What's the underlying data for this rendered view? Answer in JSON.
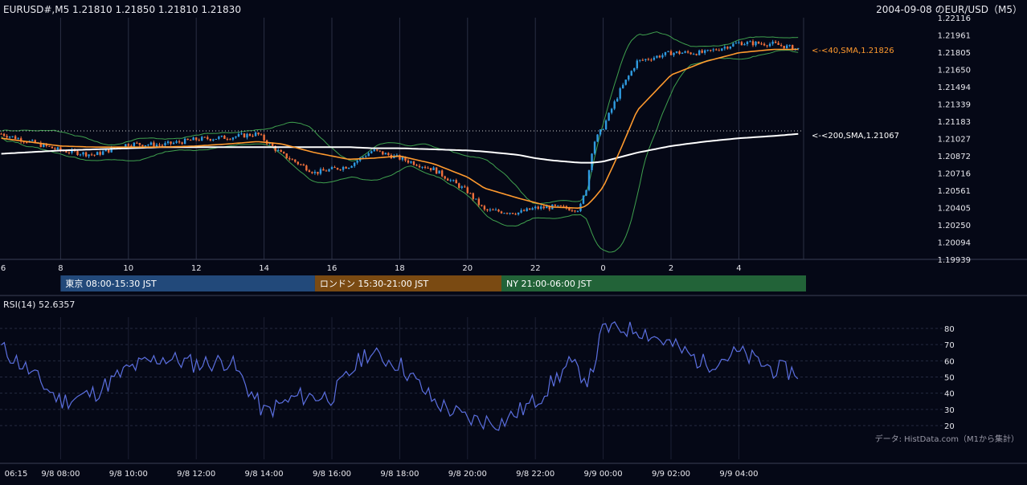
{
  "header": {
    "symbol_quote": "EURUSD#,M5 1.21810 1.21850 1.21810 1.21830",
    "title": "2004-09-08 のEUR/USD（M5）"
  },
  "price_axis_labels": [
    "1.22116",
    "1.21961",
    "1.21805",
    "1.21650",
    "1.21494",
    "1.21339",
    "1.21183",
    "1.21027",
    "1.20872",
    "1.20716",
    "1.20561",
    "1.20405",
    "1.20250",
    "1.20094",
    "1.19939"
  ],
  "hour_labels": [
    "6",
    "8",
    "10",
    "12",
    "14",
    "16",
    "18",
    "20",
    "22",
    "0",
    "2",
    "4"
  ],
  "sessions": [
    {
      "label": "東京 08:00-15:30 JST",
      "color": "#22497a"
    },
    {
      "label": "ロンドン 15:30-21:00 JST",
      "color": "#7a4a12"
    },
    {
      "label": "NY 21:00-06:00 JST",
      "color": "#226338"
    }
  ],
  "annotations": {
    "sma40": "<-<40,SMA,1.21826",
    "sma200": "<-<200,SMA,1.21067"
  },
  "rsi": {
    "label": "RSI(14) 52.6357",
    "ticks": [
      "80",
      "70",
      "60",
      "50",
      "40",
      "30",
      "20"
    ]
  },
  "credit": "データ: HistData.com（M1から集計）",
  "time_axis_labels": [
    "06:15",
    "9/8 08:00",
    "9/8 10:00",
    "9/8 12:00",
    "9/8 14:00",
    "9/8 16:00",
    "9/8 18:00",
    "9/8 20:00",
    "9/8 22:00",
    "9/9 00:00",
    "9/9 02:00",
    "9/9 04:00"
  ],
  "colors": {
    "background": "#050816",
    "bull": "#2f9be0",
    "bear": "#f0703c",
    "sma40": "#ff9a2e",
    "sma200": "#ffffff",
    "bollinger": "#3fa04e",
    "rsi_line": "#5b6fe0"
  },
  "chart_data": [
    {
      "type": "line",
      "title": "2004-09-08 のEUR/USD（M5）",
      "xlabel": "",
      "ylabel": "",
      "ylim": [
        1.19939,
        1.22116
      ],
      "x": [
        6.25,
        8,
        9,
        10,
        11,
        12,
        13,
        13.8,
        14.5,
        15.5,
        16.5,
        17.2,
        18,
        19,
        20,
        20.5,
        21.5,
        22,
        22.5,
        23.3,
        23.5,
        23.7,
        24,
        24.5,
        25,
        26,
        27,
        28,
        29,
        29.8
      ],
      "series": [
        {
          "name": "Close",
          "values": [
            1.2107,
            1.2092,
            1.2088,
            1.2098,
            1.2097,
            1.2102,
            1.2104,
            1.2107,
            1.2089,
            1.2072,
            1.2078,
            1.2092,
            1.2085,
            1.2075,
            1.2055,
            1.2038,
            1.2036,
            1.204,
            1.2041,
            1.2039,
            1.2058,
            1.2098,
            1.2113,
            1.2146,
            1.2172,
            1.218,
            1.218,
            1.2189,
            1.2188,
            1.2183
          ]
        },
        {
          "name": "SMA40",
          "values": [
            1.2103,
            1.2096,
            1.2095,
            1.2095,
            1.2095,
            1.2096,
            1.2098,
            1.21,
            1.2098,
            1.209,
            1.2084,
            1.2085,
            1.2087,
            1.208,
            1.2068,
            1.2058,
            1.2049,
            1.2045,
            1.2041,
            1.204,
            1.2042,
            1.2048,
            1.2059,
            1.2092,
            1.2128,
            1.216,
            1.2172,
            1.218,
            1.2183,
            1.2183
          ]
        },
        {
          "name": "SMA200",
          "values": [
            1.2089,
            1.2092,
            1.2093,
            1.2094,
            1.2095,
            1.2095,
            1.2095,
            1.2095,
            1.2095,
            1.2095,
            1.2095,
            1.2094,
            1.2094,
            1.2093,
            1.2092,
            1.2091,
            1.2088,
            1.2085,
            1.2083,
            1.2081,
            1.2081,
            1.2081,
            1.2082,
            1.2086,
            1.209,
            1.2096,
            1.21,
            1.2103,
            1.2105,
            1.2107
          ]
        }
      ]
    },
    {
      "type": "line",
      "title": "RSI(14) 52.6357",
      "ylim": [
        20,
        80
      ],
      "x": [
        6.25,
        7,
        8,
        9,
        10,
        11,
        12,
        13,
        14,
        15,
        16,
        17,
        18,
        19,
        20,
        21,
        22,
        23,
        23.6,
        24,
        25,
        26,
        27,
        28,
        29,
        29.8
      ],
      "series": [
        {
          "name": "RSI(14)",
          "values": [
            68,
            55,
            35,
            40,
            55,
            62,
            58,
            60,
            28,
            38,
            38,
            65,
            58,
            35,
            24,
            22,
            35,
            58,
            48,
            80,
            80,
            70,
            58,
            65,
            55,
            52.6357
          ]
        }
      ]
    }
  ]
}
